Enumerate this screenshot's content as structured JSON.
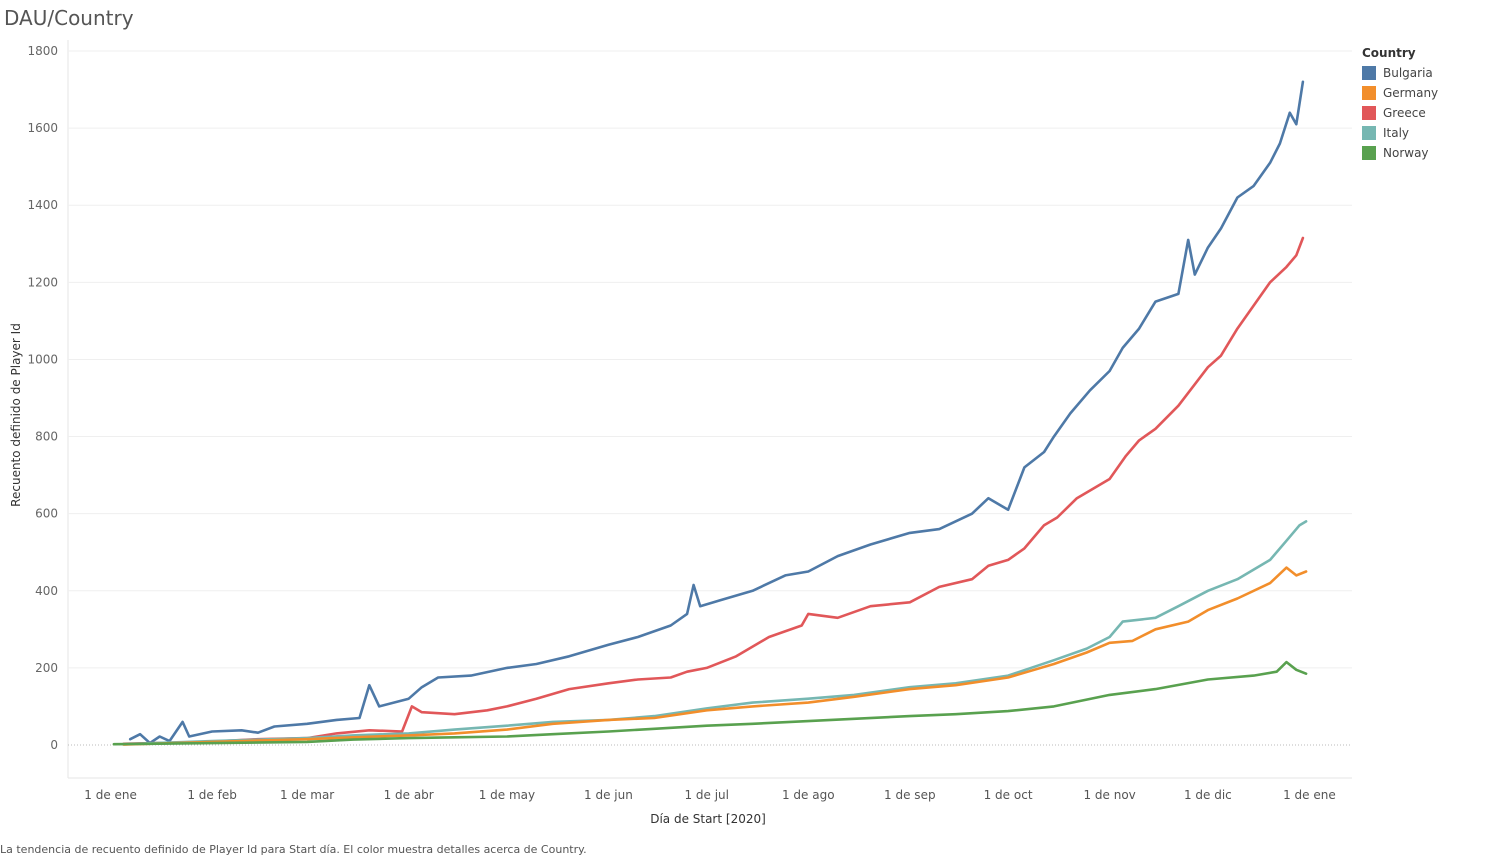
{
  "title": "DAU/Country",
  "caption": "La tendencia de recuento definido de Player Id para Start día.  El color muestra detalles acerca de Country.",
  "legend": {
    "title": "Country",
    "items": [
      {
        "name": "Bulgaria",
        "color": "#4e79a7"
      },
      {
        "name": "Germany",
        "color": "#f28e2b"
      },
      {
        "name": "Greece",
        "color": "#e15759"
      },
      {
        "name": "Italy",
        "color": "#76b7b2"
      },
      {
        "name": "Norway",
        "color": "#59a14f"
      }
    ]
  },
  "chart_data": {
    "type": "line",
    "title": "DAU/Country",
    "xlabel": "Día de Start [2020]",
    "ylabel": "Recuento definido de Player Id",
    "ylim": [
      0,
      1800
    ],
    "yticks": [
      0,
      200,
      400,
      600,
      800,
      1000,
      1200,
      1400,
      1600,
      1800
    ],
    "xticks": [
      {
        "label": "1 de ene",
        "date": "2020-01-01"
      },
      {
        "label": "1 de feb",
        "date": "2020-02-01"
      },
      {
        "label": "1 de mar",
        "date": "2020-03-01"
      },
      {
        "label": "1 de abr",
        "date": "2020-04-01"
      },
      {
        "label": "1 de may",
        "date": "2020-05-01"
      },
      {
        "label": "1 de jun",
        "date": "2020-06-01"
      },
      {
        "label": "1 de jul",
        "date": "2020-07-01"
      },
      {
        "label": "1 de ago",
        "date": "2020-08-01"
      },
      {
        "label": "1 de sep",
        "date": "2020-09-01"
      },
      {
        "label": "1 de oct",
        "date": "2020-10-01"
      },
      {
        "label": "1 de nov",
        "date": "2020-11-01"
      },
      {
        "label": "1 de dic",
        "date": "2020-12-01"
      },
      {
        "label": "1 de ene",
        "date": "2021-01-01"
      }
    ],
    "xlim": [
      "2019-12-19",
      "2021-01-14"
    ],
    "grid": true,
    "legend_position": "right",
    "series": [
      {
        "name": "Bulgaria",
        "color": "#4e79a7",
        "points": [
          [
            "2020-01-07",
            15
          ],
          [
            "2020-01-10",
            28
          ],
          [
            "2020-01-13",
            5
          ],
          [
            "2020-01-16",
            22
          ],
          [
            "2020-01-19",
            10
          ],
          [
            "2020-01-23",
            60
          ],
          [
            "2020-01-25",
            22
          ],
          [
            "2020-02-01",
            35
          ],
          [
            "2020-02-10",
            38
          ],
          [
            "2020-02-15",
            32
          ],
          [
            "2020-02-20",
            48
          ],
          [
            "2020-03-01",
            55
          ],
          [
            "2020-03-10",
            65
          ],
          [
            "2020-03-17",
            70
          ],
          [
            "2020-03-20",
            155
          ],
          [
            "2020-03-23",
            100
          ],
          [
            "2020-04-01",
            120
          ],
          [
            "2020-04-05",
            150
          ],
          [
            "2020-04-10",
            175
          ],
          [
            "2020-04-20",
            180
          ],
          [
            "2020-05-01",
            200
          ],
          [
            "2020-05-10",
            210
          ],
          [
            "2020-05-20",
            230
          ],
          [
            "2020-06-01",
            260
          ],
          [
            "2020-06-10",
            280
          ],
          [
            "2020-06-20",
            310
          ],
          [
            "2020-06-25",
            340
          ],
          [
            "2020-06-27",
            415
          ],
          [
            "2020-06-29",
            360
          ],
          [
            "2020-07-05",
            375
          ],
          [
            "2020-07-15",
            400
          ],
          [
            "2020-07-25",
            440
          ],
          [
            "2020-08-01",
            450
          ],
          [
            "2020-08-10",
            490
          ],
          [
            "2020-08-20",
            520
          ],
          [
            "2020-09-01",
            550
          ],
          [
            "2020-09-10",
            560
          ],
          [
            "2020-09-20",
            600
          ],
          [
            "2020-09-25",
            640
          ],
          [
            "2020-10-01",
            610
          ],
          [
            "2020-10-06",
            720
          ],
          [
            "2020-10-12",
            760
          ],
          [
            "2020-10-15",
            800
          ],
          [
            "2020-10-20",
            860
          ],
          [
            "2020-10-26",
            920
          ],
          [
            "2020-11-01",
            970
          ],
          [
            "2020-11-05",
            1030
          ],
          [
            "2020-11-10",
            1080
          ],
          [
            "2020-11-15",
            1150
          ],
          [
            "2020-11-22",
            1170
          ],
          [
            "2020-11-25",
            1310
          ],
          [
            "2020-11-27",
            1220
          ],
          [
            "2020-12-01",
            1290
          ],
          [
            "2020-12-05",
            1340
          ],
          [
            "2020-12-10",
            1420
          ],
          [
            "2020-12-15",
            1450
          ],
          [
            "2020-12-20",
            1510
          ],
          [
            "2020-12-23",
            1560
          ],
          [
            "2020-12-26",
            1640
          ],
          [
            "2020-12-28",
            1610
          ],
          [
            "2020-12-30",
            1720
          ]
        ]
      },
      {
        "name": "Greece",
        "color": "#e15759",
        "points": [
          [
            "2020-01-05",
            3
          ],
          [
            "2020-01-20",
            6
          ],
          [
            "2020-02-01",
            9
          ],
          [
            "2020-02-15",
            15
          ],
          [
            "2020-03-01",
            18
          ],
          [
            "2020-03-10",
            30
          ],
          [
            "2020-03-20",
            38
          ],
          [
            "2020-03-30",
            35
          ],
          [
            "2020-04-02",
            100
          ],
          [
            "2020-04-05",
            85
          ],
          [
            "2020-04-15",
            80
          ],
          [
            "2020-04-25",
            90
          ],
          [
            "2020-05-01",
            100
          ],
          [
            "2020-05-10",
            120
          ],
          [
            "2020-05-20",
            145
          ],
          [
            "2020-06-01",
            160
          ],
          [
            "2020-06-10",
            170
          ],
          [
            "2020-06-20",
            175
          ],
          [
            "2020-06-25",
            190
          ],
          [
            "2020-07-01",
            200
          ],
          [
            "2020-07-10",
            230
          ],
          [
            "2020-07-20",
            280
          ],
          [
            "2020-07-30",
            310
          ],
          [
            "2020-08-01",
            340
          ],
          [
            "2020-08-10",
            330
          ],
          [
            "2020-08-20",
            360
          ],
          [
            "2020-09-01",
            370
          ],
          [
            "2020-09-10",
            410
          ],
          [
            "2020-09-20",
            430
          ],
          [
            "2020-09-25",
            465
          ],
          [
            "2020-10-01",
            480
          ],
          [
            "2020-10-06",
            510
          ],
          [
            "2020-10-12",
            570
          ],
          [
            "2020-10-16",
            590
          ],
          [
            "2020-10-22",
            640
          ],
          [
            "2020-11-01",
            690
          ],
          [
            "2020-11-06",
            750
          ],
          [
            "2020-11-10",
            790
          ],
          [
            "2020-11-15",
            820
          ],
          [
            "2020-11-22",
            880
          ],
          [
            "2020-12-01",
            980
          ],
          [
            "2020-12-05",
            1010
          ],
          [
            "2020-12-10",
            1080
          ],
          [
            "2020-12-15",
            1140
          ],
          [
            "2020-12-20",
            1200
          ],
          [
            "2020-12-25",
            1240
          ],
          [
            "2020-12-28",
            1270
          ],
          [
            "2020-12-30",
            1315
          ]
        ]
      },
      {
        "name": "Italy",
        "color": "#76b7b2",
        "points": [
          [
            "2020-01-05",
            2
          ],
          [
            "2020-02-01",
            10
          ],
          [
            "2020-03-01",
            18
          ],
          [
            "2020-03-15",
            25
          ],
          [
            "2020-04-01",
            30
          ],
          [
            "2020-04-15",
            40
          ],
          [
            "2020-05-01",
            50
          ],
          [
            "2020-05-15",
            60
          ],
          [
            "2020-06-01",
            65
          ],
          [
            "2020-06-15",
            75
          ],
          [
            "2020-07-01",
            95
          ],
          [
            "2020-07-15",
            110
          ],
          [
            "2020-08-01",
            120
          ],
          [
            "2020-08-15",
            130
          ],
          [
            "2020-09-01",
            150
          ],
          [
            "2020-09-15",
            160
          ],
          [
            "2020-10-01",
            180
          ],
          [
            "2020-10-15",
            220
          ],
          [
            "2020-10-25",
            250
          ],
          [
            "2020-11-01",
            280
          ],
          [
            "2020-11-05",
            320
          ],
          [
            "2020-11-15",
            330
          ],
          [
            "2020-11-22",
            360
          ],
          [
            "2020-12-01",
            400
          ],
          [
            "2020-12-10",
            430
          ],
          [
            "2020-12-20",
            480
          ],
          [
            "2020-12-25",
            530
          ],
          [
            "2020-12-29",
            570
          ],
          [
            "2020-12-31",
            580
          ]
        ]
      },
      {
        "name": "Germany",
        "color": "#f28e2b",
        "points": [
          [
            "2020-01-05",
            1
          ],
          [
            "2020-02-01",
            8
          ],
          [
            "2020-03-01",
            15
          ],
          [
            "2020-03-15",
            20
          ],
          [
            "2020-04-01",
            25
          ],
          [
            "2020-04-15",
            30
          ],
          [
            "2020-05-01",
            40
          ],
          [
            "2020-05-15",
            55
          ],
          [
            "2020-06-01",
            65
          ],
          [
            "2020-06-15",
            70
          ],
          [
            "2020-07-01",
            90
          ],
          [
            "2020-07-15",
            100
          ],
          [
            "2020-08-01",
            110
          ],
          [
            "2020-08-15",
            125
          ],
          [
            "2020-09-01",
            145
          ],
          [
            "2020-09-15",
            155
          ],
          [
            "2020-10-01",
            175
          ],
          [
            "2020-10-15",
            210
          ],
          [
            "2020-10-25",
            240
          ],
          [
            "2020-11-01",
            265
          ],
          [
            "2020-11-08",
            270
          ],
          [
            "2020-11-15",
            300
          ],
          [
            "2020-11-25",
            320
          ],
          [
            "2020-12-01",
            350
          ],
          [
            "2020-12-10",
            380
          ],
          [
            "2020-12-20",
            420
          ],
          [
            "2020-12-25",
            460
          ],
          [
            "2020-12-28",
            440
          ],
          [
            "2020-12-31",
            450
          ]
        ]
      },
      {
        "name": "Norway",
        "color": "#59a14f",
        "points": [
          [
            "2020-01-02",
            2
          ],
          [
            "2020-02-01",
            5
          ],
          [
            "2020-03-01",
            8
          ],
          [
            "2020-03-15",
            14
          ],
          [
            "2020-04-01",
            18
          ],
          [
            "2020-04-15",
            20
          ],
          [
            "2020-05-01",
            22
          ],
          [
            "2020-05-15",
            28
          ],
          [
            "2020-06-01",
            35
          ],
          [
            "2020-06-15",
            42
          ],
          [
            "2020-07-01",
            50
          ],
          [
            "2020-07-15",
            55
          ],
          [
            "2020-08-01",
            62
          ],
          [
            "2020-08-15",
            68
          ],
          [
            "2020-09-01",
            75
          ],
          [
            "2020-09-15",
            80
          ],
          [
            "2020-10-01",
            88
          ],
          [
            "2020-10-15",
            100
          ],
          [
            "2020-11-01",
            130
          ],
          [
            "2020-11-15",
            145
          ],
          [
            "2020-12-01",
            170
          ],
          [
            "2020-12-15",
            180
          ],
          [
            "2020-12-22",
            190
          ],
          [
            "2020-12-25",
            215
          ],
          [
            "2020-12-28",
            195
          ],
          [
            "2020-12-31",
            185
          ]
        ]
      }
    ]
  }
}
